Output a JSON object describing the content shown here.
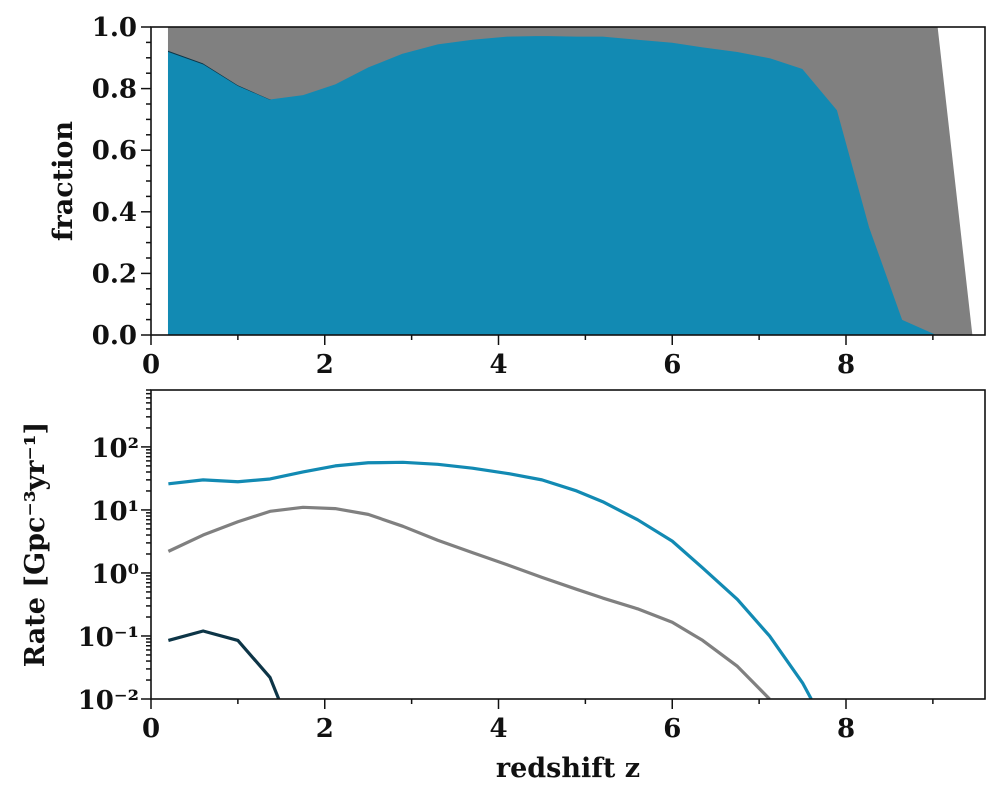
{
  "chart_data": [
    {
      "type": "area",
      "stacked": true,
      "ylabel": "fraction",
      "xlim": [
        0,
        9.6
      ],
      "ylim": [
        0.0,
        1.0
      ],
      "xticks": [
        "0",
        "2",
        "4",
        "6",
        "8"
      ],
      "yticks": [
        "0.0",
        "0.2",
        "0.4",
        "0.6",
        "0.8",
        "1.0"
      ],
      "grid": false,
      "series": [
        {
          "color": "#128ab3",
          "x": [
            0.2,
            0.6,
            1.0,
            1.37,
            1.75,
            2.12,
            2.5,
            2.9,
            3.3,
            3.7,
            4.1,
            4.5,
            4.9,
            5.2,
            5.6,
            6.0,
            6.35,
            6.75,
            7.12,
            7.5,
            7.9,
            8.27,
            8.65,
            9.05
          ],
          "values": [
            0.92,
            0.88,
            0.81,
            0.765,
            0.78,
            0.815,
            0.87,
            0.915,
            0.945,
            0.96,
            0.97,
            0.972,
            0.97,
            0.97,
            0.96,
            0.95,
            0.935,
            0.92,
            0.9,
            0.865,
            0.73,
            0.35,
            0.05,
            0.0
          ]
        },
        {
          "color": "#0d3547",
          "x": [
            0.2,
            0.6,
            1.0,
            1.37
          ],
          "values": [
            0.004,
            0.003,
            0.002,
            0.001
          ]
        },
        {
          "color": "#808080",
          "x": [
            0.2,
            0.6,
            1.0,
            1.37,
            1.75,
            2.12,
            2.5,
            2.9,
            3.3,
            3.7,
            4.1,
            4.5,
            4.9,
            5.2,
            5.6,
            6.0,
            6.35,
            6.75,
            7.12,
            7.5,
            7.9,
            8.27,
            8.65,
            9.05,
            9.45
          ],
          "values": [
            0.076,
            0.117,
            0.188,
            0.234,
            0.22,
            0.185,
            0.13,
            0.085,
            0.055,
            0.04,
            0.03,
            0.028,
            0.03,
            0.03,
            0.04,
            0.05,
            0.065,
            0.08,
            0.1,
            0.135,
            0.27,
            0.65,
            0.95,
            1.0,
            0.0
          ]
        }
      ]
    },
    {
      "type": "line",
      "xlabel": "redshift z",
      "ylabel": "Rate [Gpc⁻³yr⁻¹]",
      "yscale": "log",
      "xlim": [
        0,
        9.6
      ],
      "ylim": [
        0.01,
        800
      ],
      "xticks": [
        "0",
        "2",
        "4",
        "6",
        "8"
      ],
      "yticks": [
        "10⁻²",
        "10⁻¹",
        "10⁰",
        "10¹",
        "10²"
      ],
      "grid": false,
      "series": [
        {
          "color": "#128ab3",
          "x": [
            0.2,
            0.6,
            1.0,
            1.37,
            1.75,
            2.12,
            2.5,
            2.9,
            3.3,
            3.7,
            4.1,
            4.5,
            4.9,
            5.2,
            5.6,
            6.0,
            6.35,
            6.75,
            7.12,
            7.5,
            7.6
          ],
          "values": [
            26,
            30,
            28,
            31,
            40,
            50,
            56,
            57,
            53,
            46,
            38,
            30,
            20,
            13.5,
            7,
            3.2,
            1.2,
            0.38,
            0.1,
            0.018,
            0.01
          ]
        },
        {
          "color": "#808080",
          "x": [
            0.2,
            0.6,
            1.0,
            1.37,
            1.75,
            2.12,
            2.5,
            2.9,
            3.3,
            3.7,
            4.1,
            4.5,
            4.9,
            5.2,
            5.6,
            6.0,
            6.35,
            6.75,
            7.12
          ],
          "values": [
            2.2,
            4.0,
            6.5,
            9.5,
            11,
            10.5,
            8.5,
            5.5,
            3.3,
            2.1,
            1.35,
            0.85,
            0.55,
            0.4,
            0.27,
            0.165,
            0.085,
            0.033,
            0.01
          ]
        },
        {
          "color": "#0d3547",
          "x": [
            0.2,
            0.6,
            1.0,
            1.37,
            1.47
          ],
          "values": [
            0.085,
            0.12,
            0.085,
            0.022,
            0.01
          ]
        }
      ]
    }
  ]
}
